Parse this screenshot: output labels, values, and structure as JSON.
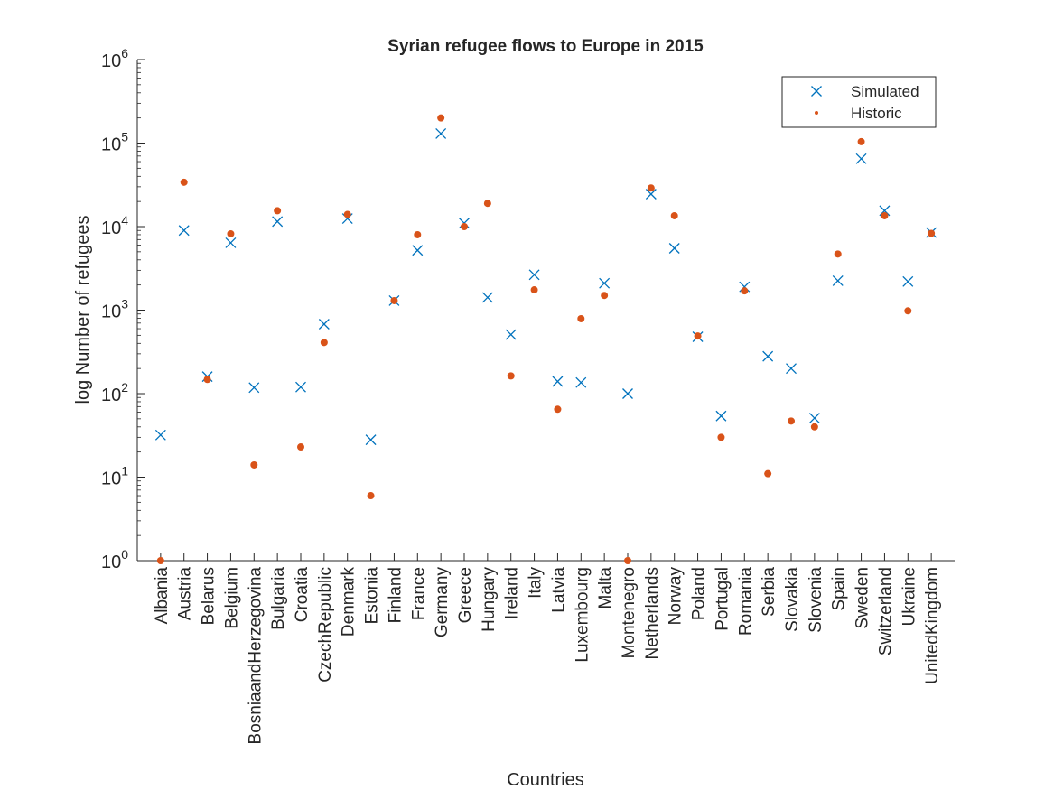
{
  "chart_data": {
    "type": "scatter",
    "title": "Syrian refugee flows to Europe in 2015",
    "xlabel": "Countries",
    "ylabel": "log Number of refugees",
    "yscale": "log",
    "ylim": [
      1,
      1000000
    ],
    "yticks": [
      {
        "value": 1,
        "base": "10",
        "exp": "0"
      },
      {
        "value": 10,
        "base": "10",
        "exp": "1"
      },
      {
        "value": 100,
        "base": "10",
        "exp": "2"
      },
      {
        "value": 1000,
        "base": "10",
        "exp": "3"
      },
      {
        "value": 10000,
        "base": "10",
        "exp": "4"
      },
      {
        "value": 100000,
        "base": "10",
        "exp": "5"
      },
      {
        "value": 1000000,
        "base": "10",
        "exp": "6"
      }
    ],
    "grid": false,
    "legend_position": "top-right",
    "categories": [
      "Albania",
      "Austria",
      "Belarus",
      "Belgium",
      "BosniaandHerzegovina",
      "Bulgaria",
      "Croatia",
      "CzechRepublic",
      "Denmark",
      "Estonia",
      "Finland",
      "France",
      "Germany",
      "Greece",
      "Hungary",
      "Ireland",
      "Italy",
      "Latvia",
      "Luxembourg",
      "Malta",
      "Montenegro",
      "Netherlands",
      "Norway",
      "Poland",
      "Portugal",
      "Romania",
      "Serbia",
      "Slovakia",
      "Slovenia",
      "Spain",
      "Sweden",
      "Switzerland",
      "Ukraine",
      "UnitedKingdom"
    ],
    "series": [
      {
        "name": "Simulated",
        "marker": "x",
        "color": "#0072BD",
        "values": [
          32,
          9000,
          160,
          6400,
          118,
          11500,
          120,
          680,
          12500,
          28,
          1300,
          5200,
          130000,
          11000,
          1420,
          510,
          2650,
          140,
          136,
          2100,
          100,
          24500,
          5500,
          480,
          54,
          1900,
          280,
          200,
          51,
          2250,
          65000,
          15500,
          2200,
          8500
        ]
      },
      {
        "name": "Historic",
        "marker": "dot",
        "color": "#D95319",
        "values": [
          1,
          34000,
          148,
          8200,
          14,
          15500,
          23,
          410,
          14000,
          6,
          1300,
          8000,
          200000,
          10000,
          19000,
          163,
          1750,
          65,
          790,
          1500,
          1,
          29000,
          13500,
          490,
          30,
          1700,
          11,
          47,
          40,
          4700,
          104000,
          13500,
          980,
          8300
        ]
      }
    ]
  }
}
